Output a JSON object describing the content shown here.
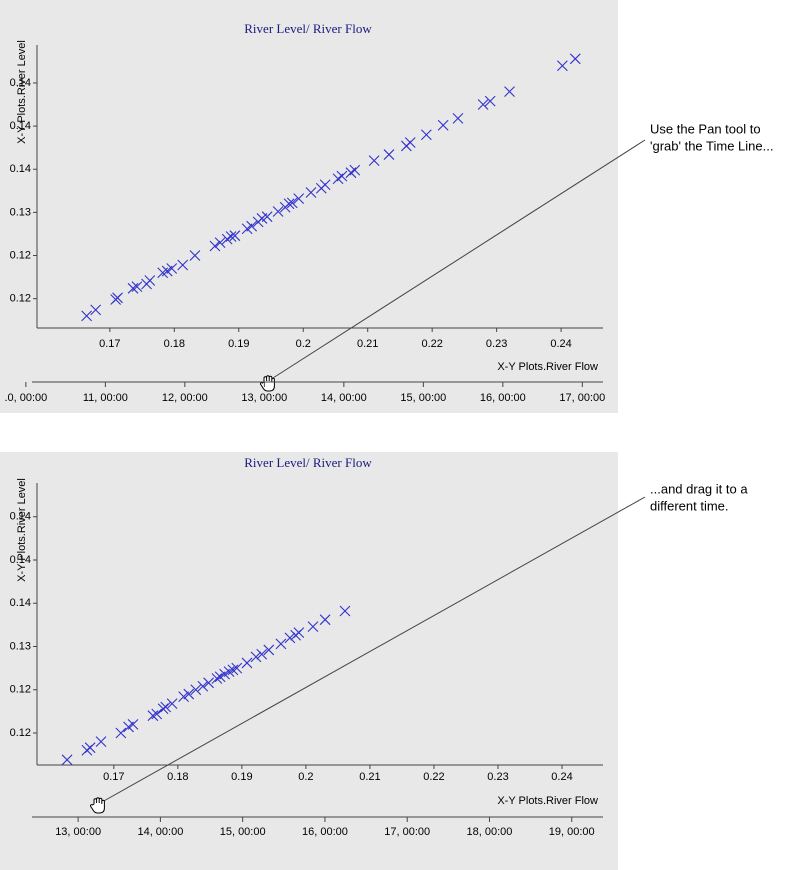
{
  "chart_data": [
    {
      "type": "scatter",
      "title": "River Level/ River Flow",
      "x_label": "X-Y Plots.River Flow",
      "y_label": "X-Y Plots.River Level",
      "color": "#3333cc",
      "marker": "x",
      "x": [
        0.1664,
        0.1678,
        0.1709,
        0.1712,
        0.1736,
        0.1742,
        0.1757,
        0.1762,
        0.1782,
        0.1789,
        0.1796,
        0.1813,
        0.1832,
        0.1863,
        0.1871,
        0.1882,
        0.1888,
        0.1894,
        0.1913,
        0.192,
        0.193,
        0.1936,
        0.1944,
        0.1961,
        0.1972,
        0.1978,
        0.1983,
        0.1993,
        0.2012,
        0.2028,
        0.2034,
        0.2054,
        0.206,
        0.2074,
        0.208,
        0.211,
        0.2133,
        0.216,
        0.2166,
        0.2191,
        0.2217,
        0.224,
        0.2279,
        0.229,
        0.232,
        0.2402,
        0.2422
      ],
      "values": [
        0.118,
        0.1187,
        0.1199,
        0.1201,
        0.1212,
        0.1214,
        0.1217,
        0.1221,
        0.123,
        0.1232,
        0.1235,
        0.1239,
        0.125,
        0.1261,
        0.1265,
        0.1269,
        0.1272,
        0.1273,
        0.1281,
        0.1284,
        0.1289,
        0.1293,
        0.1295,
        0.1301,
        0.1306,
        0.131,
        0.1311,
        0.1316,
        0.1323,
        0.1328,
        0.1332,
        0.1339,
        0.1342,
        0.1346,
        0.1349,
        0.136,
        0.1367,
        0.1377,
        0.1381,
        0.139,
        0.1401,
        0.1409,
        0.1425,
        0.1429,
        0.144,
        0.147,
        0.1478
      ],
      "xlim": [
        0.1587,
        0.2465
      ],
      "xticks": [
        0.17,
        0.18,
        0.19,
        0.2,
        0.21,
        0.22,
        0.23,
        0.24
      ],
      "ylim": [
        0.1166,
        0.1494
      ],
      "yticks": [
        {
          "value": 0.12,
          "label": "0.12"
        },
        {
          "value": 0.125,
          "label": "0.12"
        },
        {
          "value": 0.13,
          "label": "0.13"
        },
        {
          "value": 0.135,
          "label": "0.14"
        },
        {
          "value": 0.14,
          "label": "0.14"
        },
        {
          "value": 0.145,
          "label": "0.14"
        }
      ],
      "timeline": {
        "lim": [
          10.14,
          17.26
        ],
        "ticks": [
          {
            "value": 10,
            "label": ".0, 00:00"
          },
          {
            "value": 11,
            "label": "11, 00:00"
          },
          {
            "value": 12,
            "label": "12, 00:00"
          },
          {
            "value": 13,
            "label": "13, 00:00"
          },
          {
            "value": 14,
            "label": "14, 00:00"
          },
          {
            "value": 15,
            "label": "15, 00:00"
          },
          {
            "value": 16,
            "label": "16, 00:00"
          },
          {
            "value": 17,
            "label": "17, 00:00"
          }
        ]
      },
      "annotation": [
        "Use the Pan tool to",
        "'grab' the Time Line..."
      ]
    },
    {
      "type": "scatter",
      "title": "River Level/ River Flow",
      "x_label": "X-Y Plots.River Flow",
      "y_label": "X-Y Plots.River Level",
      "color": "#3333cc",
      "marker": "x",
      "x": [
        0.1627,
        0.1658,
        0.1663,
        0.168,
        0.1711,
        0.1723,
        0.173,
        0.1761,
        0.1767,
        0.1777,
        0.1781,
        0.1791,
        0.1809,
        0.1817,
        0.1828,
        0.1839,
        0.1848,
        0.1861,
        0.1866,
        0.1873,
        0.188,
        0.1886,
        0.1892,
        0.1908,
        0.1922,
        0.1931,
        0.1942,
        0.1961,
        0.1975,
        0.1984,
        0.1989,
        0.2011,
        0.203,
        0.2061
      ],
      "values": [
        0.1169,
        0.118,
        0.1183,
        0.119,
        0.12,
        0.1207,
        0.121,
        0.122,
        0.1222,
        0.1228,
        0.123,
        0.1234,
        0.1242,
        0.1245,
        0.125,
        0.1254,
        0.1258,
        0.1263,
        0.1265,
        0.1268,
        0.1271,
        0.1273,
        0.1275,
        0.1281,
        0.1288,
        0.1291,
        0.1296,
        0.1303,
        0.131,
        0.1313,
        0.1316,
        0.1323,
        0.1331,
        0.1341
      ],
      "xlim": [
        0.158,
        0.2464
      ],
      "xticks": [
        0.17,
        0.18,
        0.19,
        0.2,
        0.21,
        0.22,
        0.23,
        0.24
      ],
      "ylim": [
        0.1163,
        0.1489
      ],
      "yticks": [
        {
          "value": 0.12,
          "label": "0.12"
        },
        {
          "value": 0.125,
          "label": "0.12"
        },
        {
          "value": 0.13,
          "label": "0.13"
        },
        {
          "value": 0.135,
          "label": "0.14"
        },
        {
          "value": 0.14,
          "label": "0.14"
        },
        {
          "value": 0.145,
          "label": "0.14"
        }
      ],
      "timeline": {
        "lim": [
          12.5,
          19.38
        ],
        "ticks": [
          {
            "value": 13,
            "label": "13, 00:00"
          },
          {
            "value": 14,
            "label": "14, 00:00"
          },
          {
            "value": 15,
            "label": "15, 00:00"
          },
          {
            "value": 16,
            "label": "16, 00:00"
          },
          {
            "value": 17,
            "label": "17, 00:00"
          },
          {
            "value": 18,
            "label": "18, 00:00"
          },
          {
            "value": 19,
            "label": "19, 00:00"
          }
        ]
      },
      "annotation": [
        "...and drag it to a",
        "different time."
      ]
    }
  ]
}
